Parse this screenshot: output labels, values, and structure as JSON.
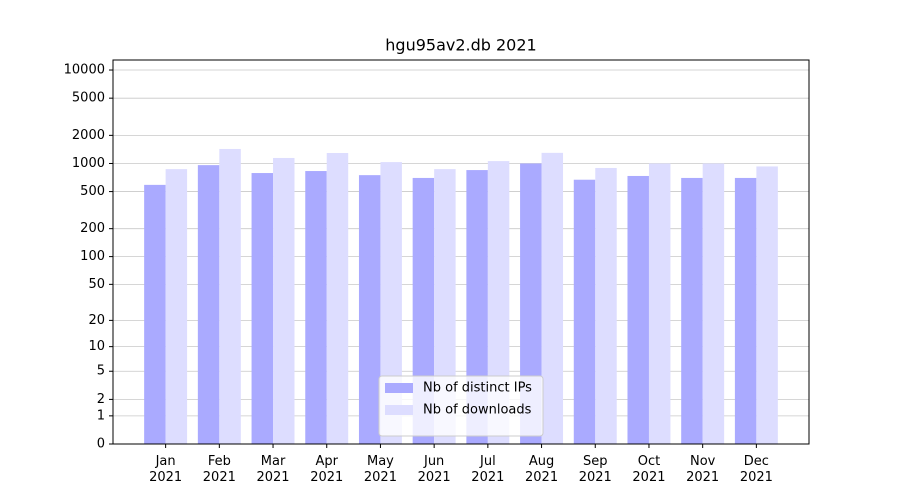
{
  "chart_data": {
    "type": "bar",
    "title": "hgu95av2.db 2021",
    "categories": [
      "Jan 2021",
      "Feb 2021",
      "Mar 2021",
      "Apr 2021",
      "May 2021",
      "Jun 2021",
      "Jul 2021",
      "Aug 2021",
      "Sep 2021",
      "Oct 2021",
      "Nov 2021",
      "Dec 2021"
    ],
    "series": [
      {
        "name": "Nb of distinct IPs",
        "color": "#aaaaff",
        "values": [
          590,
          960,
          790,
          830,
          750,
          700,
          850,
          1000,
          670,
          735,
          700,
          700
        ]
      },
      {
        "name": "Nb of downloads",
        "color": "#ddddff",
        "values": [
          870,
          1430,
          1145,
          1295,
          1035,
          870,
          1060,
          1300,
          895,
          1000,
          1000,
          930
        ]
      }
    ],
    "yscale": "log1p",
    "ylim": [
      0,
      12800
    ],
    "yticks": [
      0,
      1,
      2,
      5,
      10,
      20,
      50,
      100,
      200,
      500,
      1000,
      2000,
      5000,
      10000
    ],
    "grid": true,
    "legend": "lower center"
  }
}
